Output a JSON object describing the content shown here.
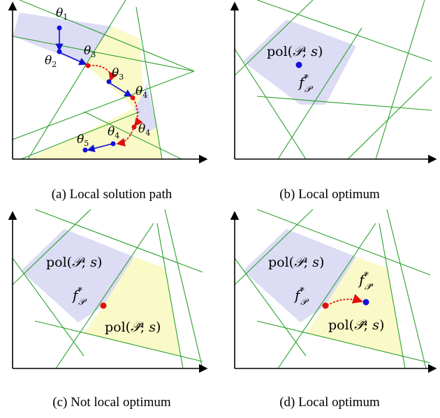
{
  "panels": [
    {
      "id": "a",
      "caption": "(a) Local solution path",
      "labels": {
        "theta1": "θ",
        "theta1_sub": "1",
        "theta2": "θ",
        "theta2_sub": "2",
        "theta3a": "θ",
        "theta3a_sub": "3",
        "theta3b": "θ",
        "theta3b_sub": "3",
        "theta4a": "θ",
        "theta4a_sub": "4",
        "theta4b": "θ",
        "theta4b_sub": "4",
        "theta4c": "θ",
        "theta4c_sub": "4",
        "theta5": "θ",
        "theta5_sub": "5"
      }
    },
    {
      "id": "b",
      "caption": "(b) Local optimum",
      "labels": {
        "pol": "pol(",
        "pol_set": "𝒫",
        "pol_rest": "; ",
        "pol_s": "s",
        "pol_close": ")",
        "f": "f",
        "f_sup": "*",
        "f_sub": "𝒫"
      }
    },
    {
      "id": "c",
      "caption": "(c) Not local optimum",
      "labels": {
        "pol": "pol(",
        "pol_set": "𝒫",
        "pol_rest": "; ",
        "pol_s": "s",
        "pol_close": ")",
        "pol2": "pol(",
        "pol2_set": "𝒫̃",
        "pol2_rest": "; ",
        "pol2_s": "s",
        "pol2_close": ")",
        "f": "f",
        "f_sup": "*",
        "f_sub": "𝒫"
      }
    },
    {
      "id": "d",
      "caption": "(d) Local optimum",
      "labels": {
        "pol": "pol(",
        "pol_set": "𝒫",
        "pol_rest": "; ",
        "pol_s": "s",
        "pol_close": ")",
        "pol2": "pol(",
        "pol2_set": "𝒫̃",
        "pol2_rest": "; ",
        "pol2_s": "s",
        "pol2_close": ")",
        "f": "f",
        "f_sup": "*",
        "f_sub": "𝒫",
        "g": "f",
        "g_sup": "*",
        "g_sub": "𝒫̃"
      }
    }
  ],
  "colors": {
    "line": "#2ca02c",
    "region_blue": "#dcdcf5",
    "region_yellow": "#fafac8",
    "point_blue": "#1010e0",
    "point_red": "#e01010",
    "path_red": "#e01010",
    "arrow_blue": "#1010d0"
  }
}
